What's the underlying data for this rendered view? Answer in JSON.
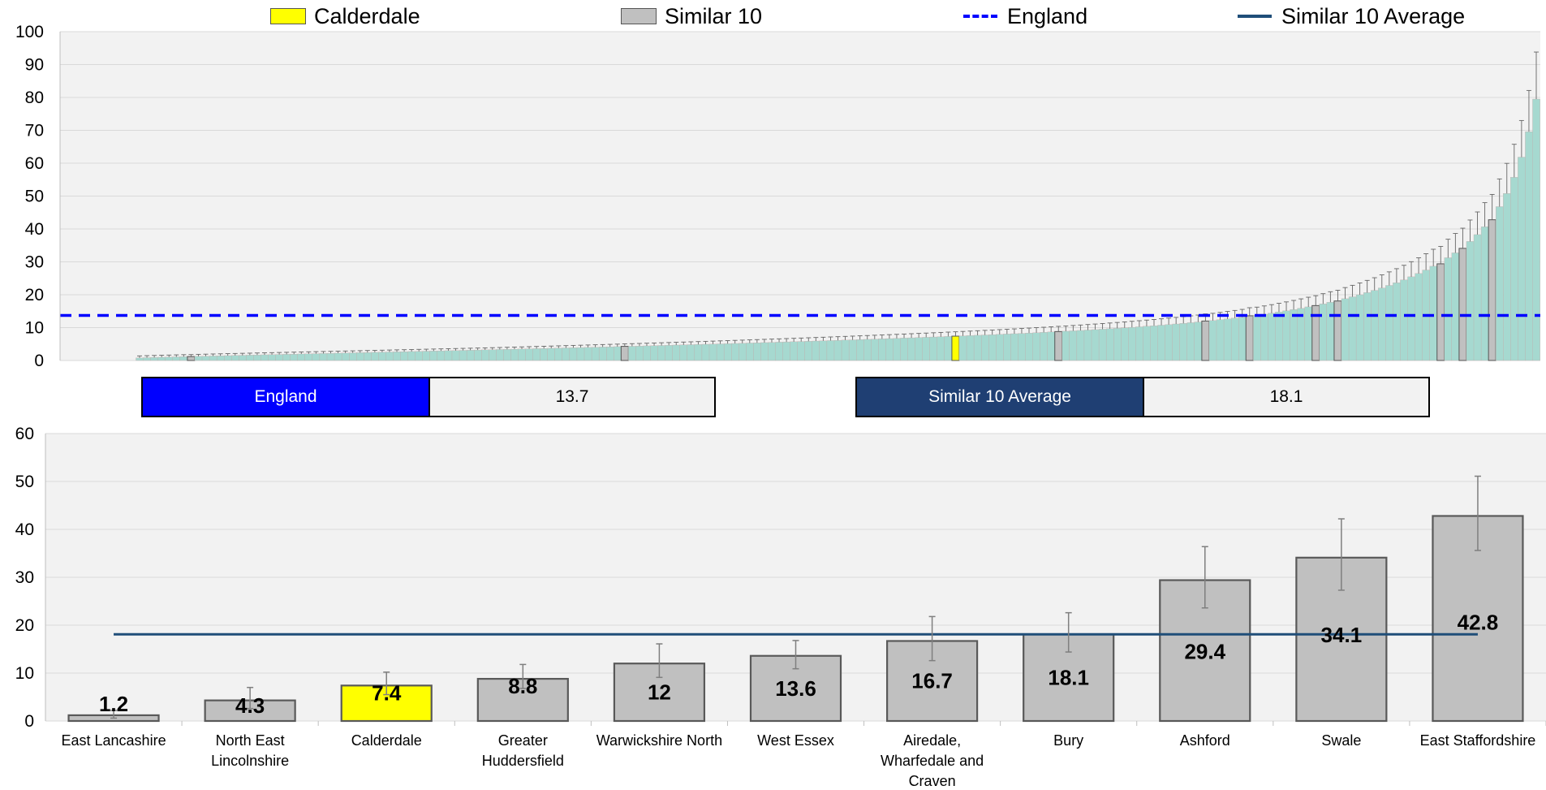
{
  "legend": {
    "item1": "Calderdale",
    "item2": "Similar 10",
    "item3": "England",
    "item4": "Similar 10 Average"
  },
  "summary": {
    "england_label": "England",
    "england_value": "13.7",
    "similar_label": "Similar 10 Average",
    "similar_value": "18.1"
  },
  "colors": {
    "calderdale": "#ffff00",
    "similar": "#c0c0c0",
    "all_areas": "#a6d9d0",
    "england": "#0000ff",
    "similar_avg": "#1f4e79",
    "plot_bg": "#f2f2f2",
    "england_box": "#0000ff",
    "similar_box": "#1f3f73"
  },
  "chart_data": [
    {
      "type": "bar",
      "ylim": [
        0,
        100
      ],
      "yticks": [
        0,
        10,
        20,
        30,
        40,
        50,
        60,
        70,
        80,
        90,
        100
      ],
      "grid": true,
      "legend_position": "top",
      "england_value": 13.7,
      "n_areas": 191,
      "series": [
        {
          "name": "Calderdale",
          "category": "Calderdale",
          "value": 7.4
        },
        {
          "name": "Similar 10",
          "categories": [
            "East Lancashire",
            "North East Lincolnshire",
            "Greater Huddersfield",
            "Warwickshire North",
            "West Essex",
            "Airedale, Wharfedale and Craven",
            "Bury",
            "Ashford",
            "Swale",
            "East Staffordshire"
          ],
          "values": [
            1.2,
            4.3,
            8.8,
            12,
            13.6,
            16.7,
            18.1,
            29.4,
            34.1,
            42.8
          ]
        },
        {
          "name": "England",
          "value": 13.7
        }
      ]
    },
    {
      "type": "bar",
      "ylim": [
        0,
        60
      ],
      "yticks": [
        0,
        10,
        20,
        30,
        40,
        50,
        60
      ],
      "grid": true,
      "categories": [
        "East Lancashire",
        "North East Lincolnshire",
        "Calderdale",
        "Greater Huddersfield",
        "Warwickshire North",
        "West Essex",
        "Airedale, Wharfedale and Craven",
        "Bury",
        "Ashford",
        "Swale",
        "East Staffordshire"
      ],
      "category_lines": [
        [
          "East Lancashire"
        ],
        [
          "North East",
          "Lincolnshire"
        ],
        [
          "Calderdale"
        ],
        [
          "Greater",
          "Huddersfield"
        ],
        [
          "Warwickshire North"
        ],
        [
          "West Essex"
        ],
        [
          "Airedale,",
          "Wharfedale and",
          "Craven"
        ],
        [
          "Bury"
        ],
        [
          "Ashford"
        ],
        [
          "Swale"
        ],
        [
          "East Staffordshire"
        ]
      ],
      "values": [
        1.2,
        4.3,
        7.4,
        8.8,
        12,
        13.6,
        16.7,
        18.1,
        29.4,
        34.1,
        42.8
      ],
      "value_labels": [
        "1.2",
        "4.3",
        "7.4",
        "8.8",
        "12",
        "13.6",
        "16.7",
        "18.1",
        "29.4",
        "34.1",
        "42.8"
      ],
      "ci_low": [
        0.6,
        2.6,
        5.5,
        6.8,
        9.1,
        10.9,
        12.6,
        14.4,
        23.6,
        27.3,
        35.6
      ],
      "ci_high": [
        2.2,
        7.0,
        10.2,
        11.8,
        16.1,
        16.8,
        21.8,
        22.6,
        36.4,
        42.2,
        51.1
      ],
      "highlight_index": 2,
      "similar_average": 18.1
    }
  ]
}
